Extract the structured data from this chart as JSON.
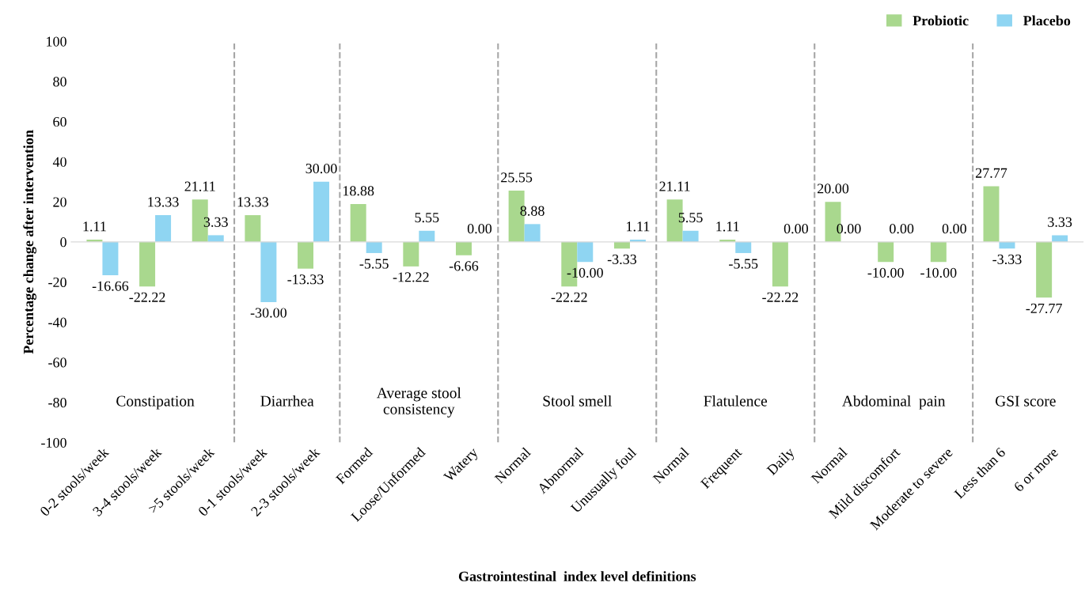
{
  "chart_data": {
    "type": "bar",
    "xlabel": "Gastrointestinal  index level definitions",
    "ylabel": "Percentage change after intervention",
    "categories": [
      "0-2 stools/week",
      "3-4 stools/week",
      ">5 stools/week",
      "0-1 stools/week",
      "2-3 stools/week",
      "Formed",
      "Loose/Unformed",
      "Watery",
      "Normal",
      "Abnormal",
      "Unusually foul",
      "Normal",
      "Frequent",
      "Daily",
      "Normal",
      "Mild discomfort",
      "Moderate to severe",
      "Less than 6",
      "6 or more"
    ],
    "series": [
      {
        "name": "Probiotic",
        "color": "#a9d88e",
        "values": [
          1.11,
          -22.22,
          21.11,
          13.33,
          -13.33,
          18.88,
          -12.22,
          -6.66,
          25.55,
          -22.22,
          -3.33,
          21.11,
          1.11,
          -22.22,
          20.0,
          -10.0,
          -10.0,
          27.77,
          -27.77
        ],
        "value_labels": [
          "1.11",
          "-22.22",
          "21.11",
          "13.33",
          "-13.33",
          "18.88",
          "-12.22",
          "-6.66",
          "25.55",
          "-22.22",
          "-3.33",
          "21.11",
          "1.11",
          "-22.22",
          "20.00",
          "-10.00",
          "-10.00",
          "27.77",
          "-27.77"
        ]
      },
      {
        "name": "Placebo",
        "color": "#8fd5f2",
        "values": [
          -16.66,
          13.33,
          3.33,
          -30.0,
          30.0,
          -5.55,
          5.55,
          0.0,
          8.88,
          -10.0,
          1.11,
          5.55,
          -5.55,
          0.0,
          0.0,
          0.0,
          0.0,
          -3.33,
          3.33
        ],
        "value_labels": [
          "-16.66",
          "13.33",
          "3.33",
          "-30.00",
          "30.00",
          "-5.55",
          "5.55",
          "0.00",
          "8.88",
          "-10.00",
          "1.11",
          "5.55",
          "-5.55",
          "0.00",
          "0.00",
          "0.00",
          "0.00",
          "-3.33",
          "3.33"
        ]
      }
    ],
    "ylim": [
      -100,
      100
    ],
    "yticks": [
      -100,
      -80,
      -60,
      -40,
      -20,
      0,
      20,
      40,
      60,
      80,
      100
    ],
    "annotations": [
      "Constipation",
      "Diarrhea",
      "Average stool\nconsistency",
      "Stool smell",
      "Flatulence",
      "Abdominal  pain",
      "GSI score"
    ],
    "legend": "top right",
    "grid": false
  }
}
